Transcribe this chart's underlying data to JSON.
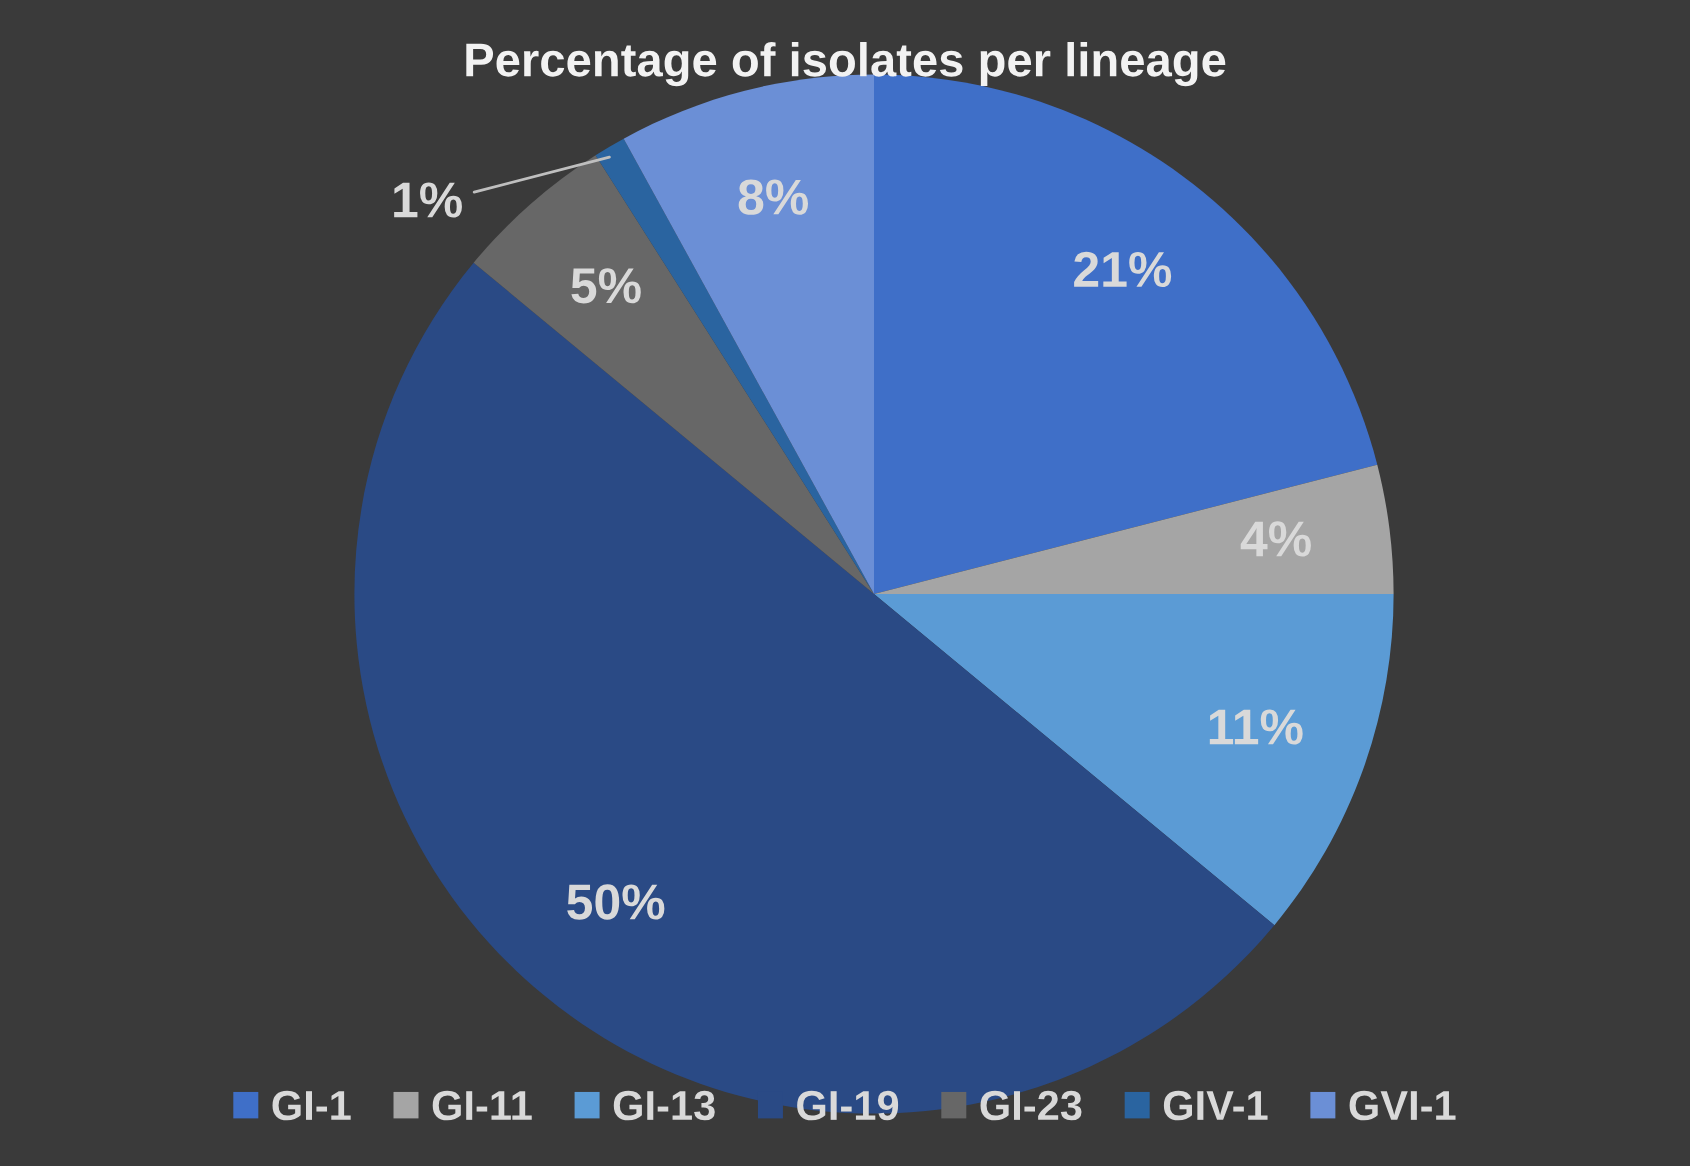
{
  "chart_data": {
    "type": "pie",
    "title": "Percentage of isolates per lineage",
    "categories": [
      "GI-1",
      "GI-11",
      "GI-13",
      "GI-19",
      "GI-23",
      "GIV-1",
      "GVI-1"
    ],
    "values": [
      21,
      4,
      11,
      50,
      5,
      1,
      8
    ],
    "colors": [
      "#3f6fc8",
      "#a5a5a5",
      "#5b9bd5",
      "#2a4a85",
      "#676767",
      "#2a64a0",
      "#6b8fd6"
    ],
    "value_labels": [
      "21%",
      "4%",
      "11%",
      "50%",
      "5%",
      "1%",
      "8%"
    ],
    "legend": "bottom"
  }
}
